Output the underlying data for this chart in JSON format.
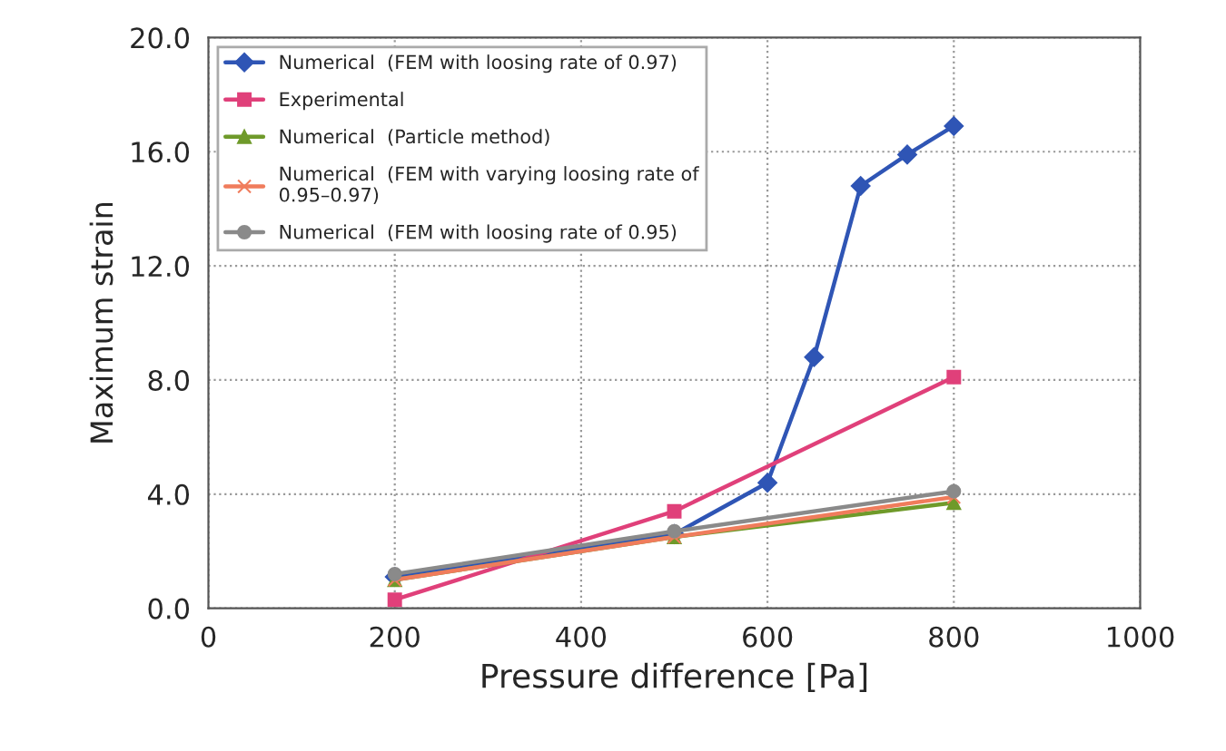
{
  "chart_data": {
    "type": "line",
    "xlabel": "Pressure difference [Pa]",
    "ylabel": "Maximum strain",
    "xlim": [
      0,
      1000
    ],
    "xticks": [
      0,
      200,
      400,
      600,
      800,
      1000
    ],
    "ylim": [
      0,
      20
    ],
    "yticks": [
      {
        "value": 0,
        "label": "0.0"
      },
      {
        "value": 4,
        "label": "4.0"
      },
      {
        "value": 8,
        "label": "8.0"
      },
      {
        "value": 12,
        "label": "12.0"
      },
      {
        "value": 16,
        "label": "16.0"
      },
      {
        "value": 20,
        "label": "20.0"
      }
    ],
    "grid": true,
    "legend": "top left",
    "series": [
      {
        "name": "Numerical  (FEM with loosing rate of 0.97)",
        "color": "#2f55b5",
        "marker": "diamond",
        "x": [
          200,
          500,
          600,
          650,
          700,
          750,
          800
        ],
        "values": [
          1.1,
          2.6,
          4.4,
          8.8,
          14.8,
          15.9,
          16.9
        ]
      },
      {
        "name": "Experimental",
        "color": "#e0407a",
        "marker": "square",
        "x": [
          200,
          500,
          800
        ],
        "values": [
          0.3,
          3.4,
          8.1
        ]
      },
      {
        "name": "Numerical  (Particle method)",
        "color": "#6f9a2a",
        "marker": "triangle",
        "x": [
          200,
          500,
          800
        ],
        "values": [
          1.0,
          2.5,
          3.7
        ]
      },
      {
        "name": "Numerical  (FEM with varying loosing rate of\n0.95–0.97)",
        "color": "#f07c5c",
        "marker": "cross",
        "x": [
          200,
          500,
          800
        ],
        "values": [
          1.0,
          2.5,
          3.9
        ]
      },
      {
        "name": "Numerical  (FEM with loosing rate of 0.95)",
        "color": "#8a8a8a",
        "marker": "circle",
        "x": [
          200,
          500,
          800
        ],
        "values": [
          1.2,
          2.7,
          4.1
        ]
      }
    ]
  }
}
